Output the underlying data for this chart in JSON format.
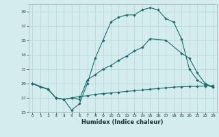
{
  "xlabel": "Humidex (Indice chaleur)",
  "bg_color": "#d4ecee",
  "grid_color": "#b8d8da",
  "line_color": "#1a6b6b",
  "ylim": [
    25,
    40
  ],
  "xlim": [
    -0.5,
    23.5
  ],
  "yticks": [
    25,
    27,
    29,
    31,
    33,
    35,
    37,
    39
  ],
  "xticks": [
    0,
    1,
    2,
    3,
    4,
    5,
    6,
    7,
    8,
    9,
    10,
    11,
    12,
    13,
    14,
    15,
    16,
    17,
    18,
    19,
    20,
    21,
    22,
    23
  ],
  "curve1_x": [
    0,
    1,
    2,
    3,
    4,
    5,
    6,
    7,
    8,
    9,
    10,
    11,
    12,
    13,
    14,
    15,
    16,
    17,
    18,
    19,
    20,
    21,
    22,
    23
  ],
  "curve1_y": [
    29.0,
    28.5,
    28.2,
    27.0,
    26.8,
    25.3,
    26.2,
    29.0,
    32.5,
    35.0,
    37.5,
    38.2,
    38.5,
    38.5,
    39.2,
    39.5,
    39.2,
    38.0,
    37.5,
    35.2,
    31.0,
    29.5,
    28.8,
    28.5
  ],
  "curve2_x": [
    0,
    2,
    3,
    4,
    5,
    6,
    7,
    8,
    9,
    10,
    11,
    12,
    13,
    14,
    15,
    17,
    19,
    20,
    21,
    22,
    23
  ],
  "curve2_y": [
    29.0,
    28.2,
    27.0,
    26.8,
    27.0,
    26.8,
    29.5,
    30.2,
    31.0,
    31.5,
    32.2,
    32.8,
    33.5,
    34.0,
    35.2,
    35.0,
    33.2,
    32.5,
    30.5,
    29.0,
    28.5
  ],
  "curve3_x": [
    0,
    2,
    3,
    4,
    5,
    6,
    7,
    8,
    9,
    10,
    11,
    12,
    13,
    14,
    15,
    16,
    17,
    18,
    19,
    20,
    21,
    22,
    23
  ],
  "curve3_y": [
    29.0,
    28.2,
    27.0,
    26.8,
    27.0,
    27.2,
    27.3,
    27.5,
    27.6,
    27.7,
    27.8,
    27.9,
    28.0,
    28.1,
    28.2,
    28.3,
    28.4,
    28.5,
    28.55,
    28.6,
    28.6,
    28.65,
    28.7
  ]
}
